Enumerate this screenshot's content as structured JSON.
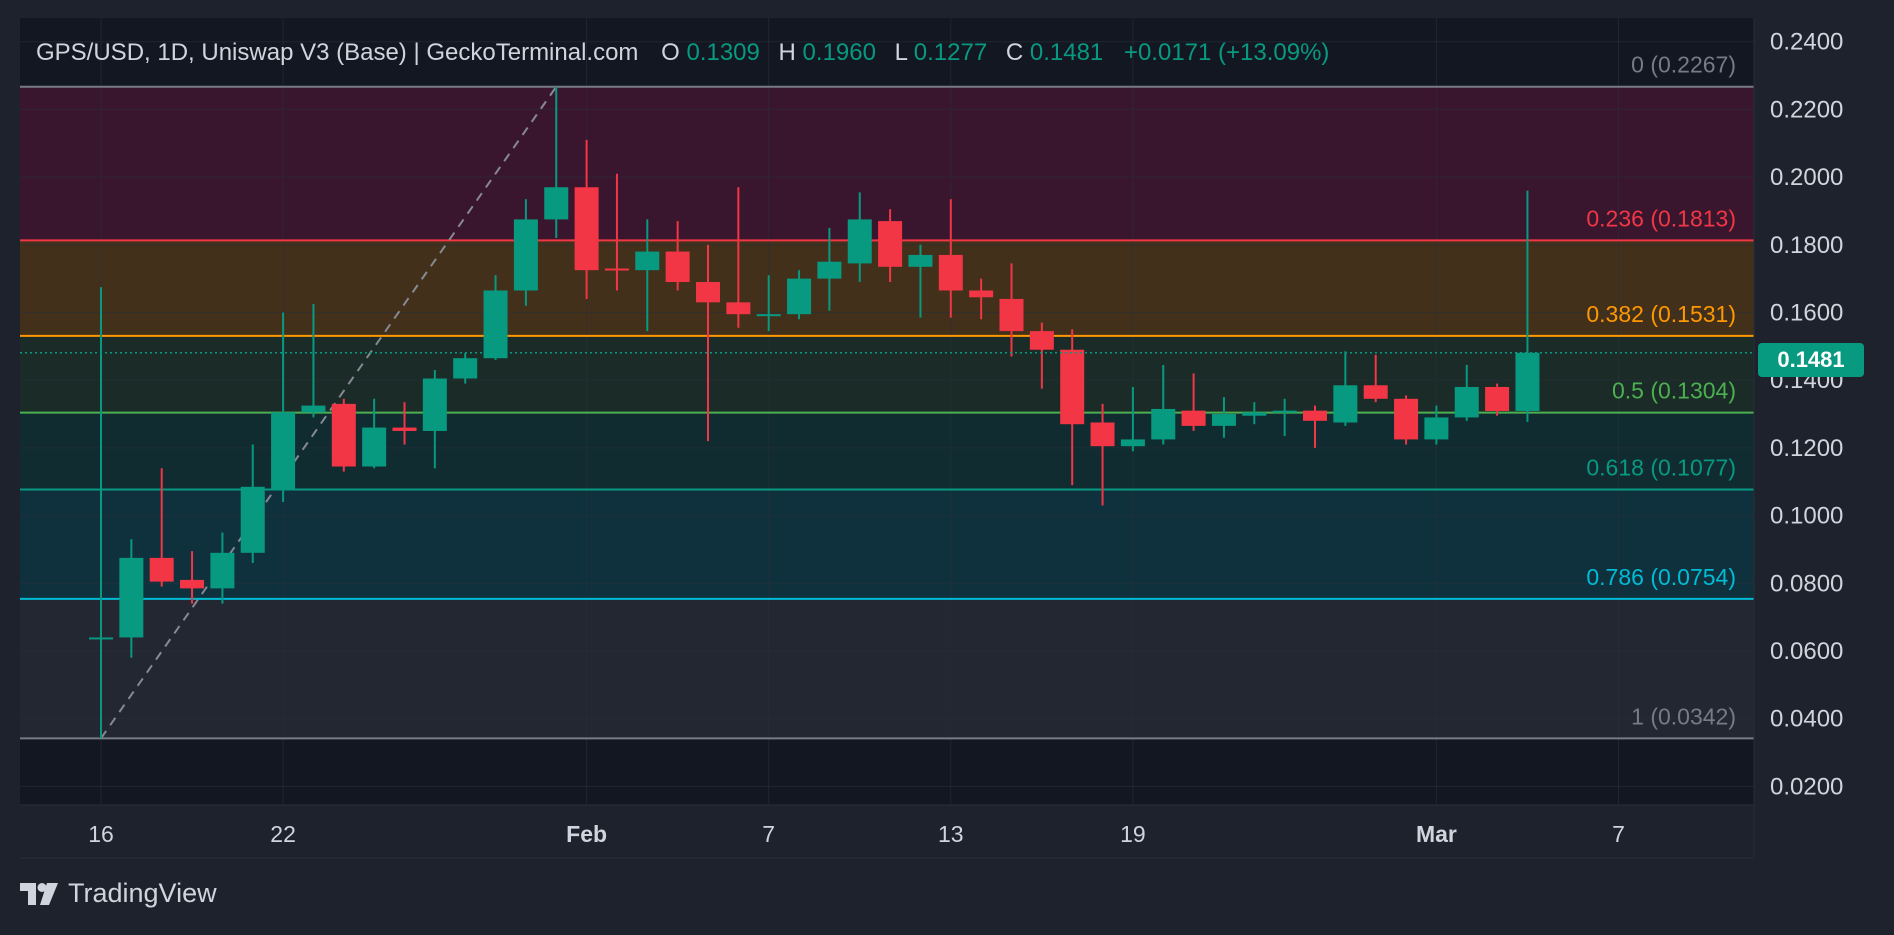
{
  "header": {
    "symbol": "GPS/USD, 1D, Uniswap V3 (Base) | GeckoTerminal.com",
    "o_label": "O",
    "o_value": "0.1309",
    "h_label": "H",
    "h_value": "0.1960",
    "l_label": "L",
    "l_value": "0.1277",
    "c_label": "C",
    "c_value": "0.1481",
    "change": "+0.0171 (+13.09%)"
  },
  "brand": {
    "name": "TradingView",
    "logo_icon": "tradingview-logo-icon"
  },
  "colors": {
    "bg": "#1e222d",
    "plot_bg": "#131722",
    "grid": "#2a2e39",
    "up": "#089981",
    "down": "#f23645",
    "text": "#d1d4dc",
    "muted": "#868993"
  },
  "chart_data": {
    "type": "candlestick",
    "title": "GPS/USD, 1D, Uniswap V3 (Base) | GeckoTerminal.com",
    "y_axis_ticks": [
      "0.2400",
      "0.2200",
      "0.2000",
      "0.1800",
      "0.1600",
      "0.1400",
      "0.1200",
      "0.1000",
      "0.0800",
      "0.0600",
      "0.0400",
      "0.0200"
    ],
    "ylim": [
      0.0145,
      0.247
    ],
    "x_axis_ticks": [
      {
        "label": "16",
        "day": 0,
        "bold": false
      },
      {
        "label": "22",
        "day": 6,
        "bold": false
      },
      {
        "label": "Feb",
        "day": 16,
        "bold": true
      },
      {
        "label": "7",
        "day": 22,
        "bold": false
      },
      {
        "label": "13",
        "day": 28,
        "bold": false
      },
      {
        "label": "19",
        "day": 34,
        "bold": false
      },
      {
        "label": "Mar",
        "day": 44,
        "bold": true
      },
      {
        "label": "7",
        "day": 50,
        "bold": false
      }
    ],
    "last_price": "0.1481",
    "fib_levels": [
      {
        "ratio": "0",
        "price": 0.2267,
        "label": "0 (0.2267)",
        "color": "#787b86",
        "fill": "#c2185b",
        "fill_opacity": 0.22
      },
      {
        "ratio": "0.236",
        "price": 0.1813,
        "label": "0.236 (0.1813)",
        "color": "#f23645",
        "fill": "#ff9800",
        "fill_opacity": 0.2
      },
      {
        "ratio": "0.382",
        "price": 0.1531,
        "label": "0.382 (0.1531)",
        "color": "#ff9800",
        "fill": "#4caf50",
        "fill_opacity": 0.14
      },
      {
        "ratio": "0.5",
        "price": 0.1304,
        "label": "0.5 (0.1304)",
        "color": "#4caf50",
        "fill": "#089981",
        "fill_opacity": 0.16
      },
      {
        "ratio": "0.618",
        "price": 0.1077,
        "label": "0.618 (0.1077)",
        "color": "#089981",
        "fill": "#00bcd4",
        "fill_opacity": 0.16
      },
      {
        "ratio": "0.786",
        "price": 0.0754,
        "label": "0.786 (0.0754)",
        "color": "#00bcd4",
        "fill": "#787b86",
        "fill_opacity": 0.16
      },
      {
        "ratio": "1",
        "price": 0.0342,
        "label": "1 (0.0342)",
        "color": "#787b86",
        "fill": null,
        "fill_opacity": 0
      }
    ],
    "trend_line": {
      "from": {
        "day": 0,
        "price": 0.0342
      },
      "to": {
        "day": 15,
        "price": 0.2267
      }
    },
    "candles": [
      {
        "day": 0,
        "o": 0.0635,
        "h": 0.1675,
        "l": 0.0342,
        "c": 0.064
      },
      {
        "day": 1,
        "o": 0.064,
        "h": 0.093,
        "l": 0.058,
        "c": 0.0875
      },
      {
        "day": 2,
        "o": 0.0875,
        "h": 0.114,
        "l": 0.079,
        "c": 0.0805
      },
      {
        "day": 3,
        "o": 0.081,
        "h": 0.0895,
        "l": 0.074,
        "c": 0.0785
      },
      {
        "day": 4,
        "o": 0.0785,
        "h": 0.095,
        "l": 0.074,
        "c": 0.089
      },
      {
        "day": 5,
        "o": 0.089,
        "h": 0.121,
        "l": 0.086,
        "c": 0.1085
      },
      {
        "day": 6,
        "o": 0.1075,
        "h": 0.16,
        "l": 0.104,
        "c": 0.1305
      },
      {
        "day": 7,
        "o": 0.1305,
        "h": 0.1625,
        "l": 0.129,
        "c": 0.1325
      },
      {
        "day": 8,
        "o": 0.133,
        "h": 0.1345,
        "l": 0.113,
        "c": 0.1145
      },
      {
        "day": 9,
        "o": 0.1145,
        "h": 0.1345,
        "l": 0.114,
        "c": 0.126
      },
      {
        "day": 10,
        "o": 0.126,
        "h": 0.1335,
        "l": 0.121,
        "c": 0.125
      },
      {
        "day": 11,
        "o": 0.125,
        "h": 0.143,
        "l": 0.114,
        "c": 0.1405
      },
      {
        "day": 12,
        "o": 0.1405,
        "h": 0.148,
        "l": 0.139,
        "c": 0.1465
      },
      {
        "day": 13,
        "o": 0.1465,
        "h": 0.171,
        "l": 0.146,
        "c": 0.1665
      },
      {
        "day": 14,
        "o": 0.1665,
        "h": 0.1935,
        "l": 0.162,
        "c": 0.1875
      },
      {
        "day": 15,
        "o": 0.1875,
        "h": 0.2267,
        "l": 0.182,
        "c": 0.197
      },
      {
        "day": 16,
        "o": 0.197,
        "h": 0.211,
        "l": 0.164,
        "c": 0.1725
      },
      {
        "day": 17,
        "o": 0.173,
        "h": 0.201,
        "l": 0.1665,
        "c": 0.1725
      },
      {
        "day": 18,
        "o": 0.1725,
        "h": 0.1875,
        "l": 0.1545,
        "c": 0.178
      },
      {
        "day": 19,
        "o": 0.178,
        "h": 0.187,
        "l": 0.1665,
        "c": 0.169
      },
      {
        "day": 20,
        "o": 0.169,
        "h": 0.18,
        "l": 0.122,
        "c": 0.163
      },
      {
        "day": 21,
        "o": 0.163,
        "h": 0.197,
        "l": 0.1555,
        "c": 0.1595
      },
      {
        "day": 22,
        "o": 0.1595,
        "h": 0.171,
        "l": 0.1545,
        "c": 0.1595
      },
      {
        "day": 23,
        "o": 0.1595,
        "h": 0.1725,
        "l": 0.158,
        "c": 0.17
      },
      {
        "day": 24,
        "o": 0.17,
        "h": 0.185,
        "l": 0.1605,
        "c": 0.175
      },
      {
        "day": 25,
        "o": 0.1745,
        "h": 0.1955,
        "l": 0.169,
        "c": 0.1875
      },
      {
        "day": 26,
        "o": 0.187,
        "h": 0.1905,
        "l": 0.169,
        "c": 0.1735
      },
      {
        "day": 27,
        "o": 0.1735,
        "h": 0.18,
        "l": 0.1585,
        "c": 0.177
      },
      {
        "day": 28,
        "o": 0.177,
        "h": 0.1935,
        "l": 0.1585,
        "c": 0.1665
      },
      {
        "day": 29,
        "o": 0.1665,
        "h": 0.17,
        "l": 0.158,
        "c": 0.1645
      },
      {
        "day": 30,
        "o": 0.164,
        "h": 0.1745,
        "l": 0.147,
        "c": 0.1545
      },
      {
        "day": 31,
        "o": 0.1545,
        "h": 0.157,
        "l": 0.1375,
        "c": 0.149
      },
      {
        "day": 32,
        "o": 0.149,
        "h": 0.155,
        "l": 0.109,
        "c": 0.127
      },
      {
        "day": 33,
        "o": 0.1275,
        "h": 0.133,
        "l": 0.103,
        "c": 0.1205
      },
      {
        "day": 34,
        "o": 0.1205,
        "h": 0.138,
        "l": 0.119,
        "c": 0.1225
      },
      {
        "day": 35,
        "o": 0.1225,
        "h": 0.1445,
        "l": 0.121,
        "c": 0.1315
      },
      {
        "day": 36,
        "o": 0.131,
        "h": 0.142,
        "l": 0.125,
        "c": 0.1265
      },
      {
        "day": 37,
        "o": 0.1265,
        "h": 0.135,
        "l": 0.123,
        "c": 0.13
      },
      {
        "day": 38,
        "o": 0.1295,
        "h": 0.1335,
        "l": 0.127,
        "c": 0.1305
      },
      {
        "day": 39,
        "o": 0.1305,
        "h": 0.1345,
        "l": 0.1235,
        "c": 0.131
      },
      {
        "day": 40,
        "o": 0.131,
        "h": 0.1325,
        "l": 0.12,
        "c": 0.128
      },
      {
        "day": 41,
        "o": 0.1275,
        "h": 0.1485,
        "l": 0.1265,
        "c": 0.1385
      },
      {
        "day": 42,
        "o": 0.1385,
        "h": 0.1475,
        "l": 0.1335,
        "c": 0.1345
      },
      {
        "day": 43,
        "o": 0.1345,
        "h": 0.1355,
        "l": 0.121,
        "c": 0.1225
      },
      {
        "day": 44,
        "o": 0.1225,
        "h": 0.1325,
        "l": 0.121,
        "c": 0.129
      },
      {
        "day": 45,
        "o": 0.129,
        "h": 0.1445,
        "l": 0.128,
        "c": 0.138
      },
      {
        "day": 46,
        "o": 0.138,
        "h": 0.139,
        "l": 0.1295,
        "c": 0.1309
      },
      {
        "day": 47,
        "o": 0.1309,
        "h": 0.196,
        "l": 0.1277,
        "c": 0.1481
      }
    ]
  }
}
